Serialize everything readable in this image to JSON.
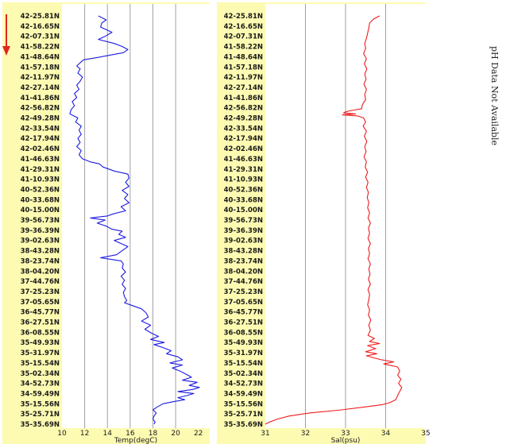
{
  "page": {
    "side_note": "pH Data Not Available",
    "colors": {
      "panel_bg": "#fdfbb2",
      "plot_bg": "#ffffff",
      "grid": "#a0a0a0",
      "arrow": "#e0261e"
    },
    "direction_icon": "arrow-down-icon"
  },
  "chart_data": [
    {
      "type": "line",
      "xlabel": "Temp(degC)",
      "xlim": [
        10,
        23
      ],
      "xticks": [
        10,
        12,
        14,
        16,
        18,
        20,
        22
      ],
      "xtick_labels": [
        "10",
        "12",
        "14",
        "16",
        "18",
        "20",
        "22"
      ],
      "color": "#1c1ce0",
      "y_labels": [
        "42-25.81N",
        "42-16.65N",
        "42-07.31N",
        "41-58.22N",
        "41-48.64N",
        "41-57.18N",
        "42-11.97N",
        "42-27.14N",
        "41-41.86N",
        "42-56.82N",
        "42-49.28N",
        "42-33.54N",
        "42-17.94N",
        "42-02.46N",
        "41-46.63N",
        "41-29.31N",
        "41-10.93N",
        "40-52.36N",
        "40-33.68N",
        "40-15.00N",
        "39-56.73N",
        "39-36.39N",
        "39-02.63N",
        "38-43.28N",
        "38-23.74N",
        "38-04.20N",
        "37-44.76N",
        "37-25.23N",
        "37-05.65N",
        "36-45.77N",
        "36-27.51N",
        "36-08.55N",
        "35-49.93N",
        "35-31.97N",
        "35-15.54N",
        "35-02.34N",
        "34-52.73N",
        "34-59.49N",
        "35-15.56N",
        "35-25.71N",
        "35-35.69N"
      ],
      "points": [
        [
          13.2,
          0
        ],
        [
          13.9,
          0.4
        ],
        [
          13.5,
          0.7
        ],
        [
          13.4,
          1.1
        ],
        [
          14.4,
          1.6
        ],
        [
          13.8,
          2.0
        ],
        [
          13.2,
          2.3
        ],
        [
          14.6,
          2.7
        ],
        [
          15.3,
          3.0
        ],
        [
          15.8,
          3.3
        ],
        [
          15.4,
          3.6
        ],
        [
          14.0,
          3.9
        ],
        [
          13.0,
          4.1
        ],
        [
          11.9,
          4.3
        ],
        [
          11.7,
          4.5
        ],
        [
          11.5,
          4.7
        ],
        [
          11.3,
          4.9
        ],
        [
          11.6,
          5.2
        ],
        [
          11.4,
          5.6
        ],
        [
          11.8,
          6.0
        ],
        [
          11.6,
          6.4
        ],
        [
          11.3,
          6.8
        ],
        [
          11.5,
          7.2
        ],
        [
          11.1,
          7.6
        ],
        [
          11.3,
          8.0
        ],
        [
          10.9,
          8.4
        ],
        [
          11.1,
          8.8
        ],
        [
          10.8,
          9.2
        ],
        [
          10.7,
          9.6
        ],
        [
          11.4,
          10.0
        ],
        [
          11.2,
          10.4
        ],
        [
          11.7,
          10.8
        ],
        [
          11.5,
          11.2
        ],
        [
          11.7,
          11.6
        ],
        [
          11.4,
          12.0
        ],
        [
          11.6,
          12.4
        ],
        [
          11.3,
          12.8
        ],
        [
          11.7,
          13.2
        ],
        [
          11.5,
          13.6
        ],
        [
          11.8,
          14.0
        ],
        [
          12.5,
          14.3
        ],
        [
          13.3,
          14.5
        ],
        [
          13.6,
          14.8
        ],
        [
          14.6,
          15.2
        ],
        [
          15.8,
          15.5
        ],
        [
          15.9,
          15.9
        ],
        [
          15.6,
          16.3
        ],
        [
          15.9,
          16.7
        ],
        [
          15.3,
          17.1
        ],
        [
          15.8,
          17.5
        ],
        [
          15.5,
          17.9
        ],
        [
          15.9,
          18.3
        ],
        [
          15.2,
          18.7
        ],
        [
          15.6,
          19.1
        ],
        [
          14.5,
          19.4
        ],
        [
          14.0,
          19.6
        ],
        [
          12.5,
          19.8
        ],
        [
          13.8,
          20.0
        ],
        [
          13.1,
          20.3
        ],
        [
          13.9,
          20.6
        ],
        [
          14.4,
          20.9
        ],
        [
          15.3,
          21.1
        ],
        [
          15.0,
          21.4
        ],
        [
          15.6,
          21.7
        ],
        [
          14.6,
          22.0
        ],
        [
          15.2,
          22.3
        ],
        [
          15.8,
          22.6
        ],
        [
          15.3,
          23.0
        ],
        [
          14.8,
          23.4
        ],
        [
          13.4,
          23.7
        ],
        [
          15.2,
          24.0
        ],
        [
          15.4,
          24.3
        ],
        [
          15.3,
          24.7
        ],
        [
          15.6,
          25.1
        ],
        [
          15.2,
          25.5
        ],
        [
          15.5,
          25.9
        ],
        [
          15.3,
          26.3
        ],
        [
          15.6,
          26.7
        ],
        [
          15.4,
          27.1
        ],
        [
          15.5,
          27.5
        ],
        [
          15.7,
          27.9
        ],
        [
          15.5,
          28.1
        ],
        [
          16.0,
          28.3
        ],
        [
          17.0,
          28.7
        ],
        [
          17.4,
          29.1
        ],
        [
          17.6,
          29.5
        ],
        [
          17.0,
          29.9
        ],
        [
          17.8,
          30.3
        ],
        [
          17.3,
          30.7
        ],
        [
          17.9,
          31.1
        ],
        [
          18.5,
          31.4
        ],
        [
          17.8,
          31.7
        ],
        [
          19.0,
          32.0
        ],
        [
          18.1,
          32.2
        ],
        [
          18.9,
          32.5
        ],
        [
          19.6,
          32.8
        ],
        [
          19.2,
          33.1
        ],
        [
          20.2,
          33.4
        ],
        [
          20.6,
          33.7
        ],
        [
          19.5,
          34.0
        ],
        [
          20.6,
          34.2
        ],
        [
          19.7,
          34.5
        ],
        [
          20.4,
          34.8
        ],
        [
          20.9,
          35.1
        ],
        [
          21.4,
          35.4
        ],
        [
          20.6,
          35.7
        ],
        [
          21.9,
          35.9
        ],
        [
          21.2,
          36.2
        ],
        [
          22.1,
          36.4
        ],
        [
          21.5,
          36.6
        ],
        [
          20.2,
          36.8
        ],
        [
          21.6,
          37.0
        ],
        [
          21.0,
          37.2
        ],
        [
          20.2,
          37.4
        ],
        [
          20.8,
          37.6
        ],
        [
          19.8,
          37.8
        ],
        [
          18.9,
          38.0
        ],
        [
          18.4,
          38.3
        ],
        [
          18.0,
          38.6
        ],
        [
          18.3,
          38.9
        ],
        [
          18.1,
          39.2
        ],
        [
          18.0,
          39.5
        ],
        [
          18.2,
          39.8
        ],
        [
          18.1,
          40.0
        ]
      ]
    },
    {
      "type": "line",
      "xlabel": "Sal(psu)",
      "xlim": [
        31,
        35
      ],
      "xticks": [
        31,
        32,
        33,
        34,
        35
      ],
      "xtick_labels": [
        "31",
        "32",
        "33",
        "34",
        "35"
      ],
      "color": "#ee1c1c",
      "y_labels": [
        "42-25.81N",
        "42-16.65N",
        "42-07.31N",
        "41-58.22N",
        "41-48.64N",
        "41-57.18N",
        "42-11.97N",
        "42-27.14N",
        "41-41.86N",
        "42-56.82N",
        "42-49.28N",
        "42-33.54N",
        "42-17.94N",
        "42-02.46N",
        "41-46.63N",
        "41-29.31N",
        "41-10.93N",
        "40-52.36N",
        "40-33.68N",
        "40-15.00N",
        "39-56.73N",
        "39-36.39N",
        "39-02.63N",
        "38-43.28N",
        "38-23.74N",
        "38-04.20N",
        "37-44.76N",
        "37-25.23N",
        "37-05.65N",
        "36-45.77N",
        "36-27.51N",
        "36-08.55N",
        "35-49.93N",
        "35-31.97N",
        "35-15.54N",
        "35-02.34N",
        "34-52.73N",
        "34-59.49N",
        "35-15.56N",
        "35-25.71N",
        "35-35.69N"
      ],
      "points": [
        [
          33.85,
          0
        ],
        [
          33.7,
          0.3
        ],
        [
          33.6,
          0.7
        ],
        [
          33.58,
          1.2
        ],
        [
          33.55,
          1.7
        ],
        [
          33.52,
          2.2
        ],
        [
          33.48,
          2.7
        ],
        [
          33.5,
          3.2
        ],
        [
          33.45,
          3.7
        ],
        [
          33.52,
          4.2
        ],
        [
          33.47,
          4.7
        ],
        [
          33.53,
          5.2
        ],
        [
          33.48,
          5.7
        ],
        [
          33.51,
          6.2
        ],
        [
          33.46,
          6.7
        ],
        [
          33.52,
          7.2
        ],
        [
          33.48,
          7.7
        ],
        [
          33.5,
          8.2
        ],
        [
          33.42,
          8.7
        ],
        [
          33.4,
          9.1
        ],
        [
          33.1,
          9.3
        ],
        [
          33.0,
          9.4
        ],
        [
          32.95,
          9.5
        ],
        [
          33.25,
          9.6
        ],
        [
          32.92,
          9.7
        ],
        [
          33.3,
          9.8
        ],
        [
          33.45,
          10.0
        ],
        [
          33.5,
          10.4
        ],
        [
          33.44,
          10.8
        ],
        [
          33.52,
          11.3
        ],
        [
          33.47,
          11.8
        ],
        [
          33.53,
          12.3
        ],
        [
          33.48,
          12.8
        ],
        [
          33.51,
          13.3
        ],
        [
          33.46,
          13.8
        ],
        [
          33.52,
          14.3
        ],
        [
          33.49,
          14.8
        ],
        [
          33.55,
          15.3
        ],
        [
          33.5,
          15.8
        ],
        [
          33.56,
          16.3
        ],
        [
          33.52,
          16.8
        ],
        [
          33.57,
          17.3
        ],
        [
          33.54,
          17.8
        ],
        [
          33.58,
          18.3
        ],
        [
          33.55,
          18.8
        ],
        [
          33.6,
          19.3
        ],
        [
          33.56,
          19.8
        ],
        [
          33.62,
          20.3
        ],
        [
          33.57,
          20.8
        ],
        [
          33.6,
          21.3
        ],
        [
          33.56,
          21.8
        ],
        [
          33.62,
          22.3
        ],
        [
          33.57,
          22.8
        ],
        [
          33.6,
          23.3
        ],
        [
          33.56,
          23.8
        ],
        [
          33.62,
          24.3
        ],
        [
          33.58,
          24.8
        ],
        [
          33.61,
          25.3
        ],
        [
          33.57,
          25.8
        ],
        [
          33.62,
          26.3
        ],
        [
          33.56,
          26.8
        ],
        [
          33.6,
          27.3
        ],
        [
          33.58,
          27.8
        ],
        [
          33.55,
          28.3
        ],
        [
          33.6,
          28.8
        ],
        [
          33.57,
          29.3
        ],
        [
          33.63,
          29.8
        ],
        [
          33.58,
          30.3
        ],
        [
          33.62,
          30.8
        ],
        [
          33.56,
          31.3
        ],
        [
          33.72,
          31.6
        ],
        [
          33.6,
          31.9
        ],
        [
          33.85,
          32.1
        ],
        [
          33.55,
          32.3
        ],
        [
          33.75,
          32.6
        ],
        [
          33.5,
          32.9
        ],
        [
          33.78,
          33.1
        ],
        [
          33.52,
          33.3
        ],
        [
          33.7,
          33.5
        ],
        [
          33.9,
          33.7
        ],
        [
          34.2,
          33.9
        ],
        [
          33.95,
          34.1
        ],
        [
          34.3,
          34.4
        ],
        [
          34.35,
          34.8
        ],
        [
          34.3,
          35.2
        ],
        [
          34.38,
          35.6
        ],
        [
          34.32,
          36.0
        ],
        [
          34.4,
          36.4
        ],
        [
          34.35,
          36.8
        ],
        [
          34.3,
          37.2
        ],
        [
          34.25,
          37.6
        ],
        [
          34.1,
          37.9
        ],
        [
          33.9,
          38.1
        ],
        [
          33.5,
          38.3
        ],
        [
          32.9,
          38.6
        ],
        [
          32.1,
          38.9
        ],
        [
          31.6,
          39.2
        ],
        [
          31.3,
          39.5
        ],
        [
          31.1,
          39.8
        ],
        [
          31.0,
          40.0
        ]
      ]
    }
  ]
}
